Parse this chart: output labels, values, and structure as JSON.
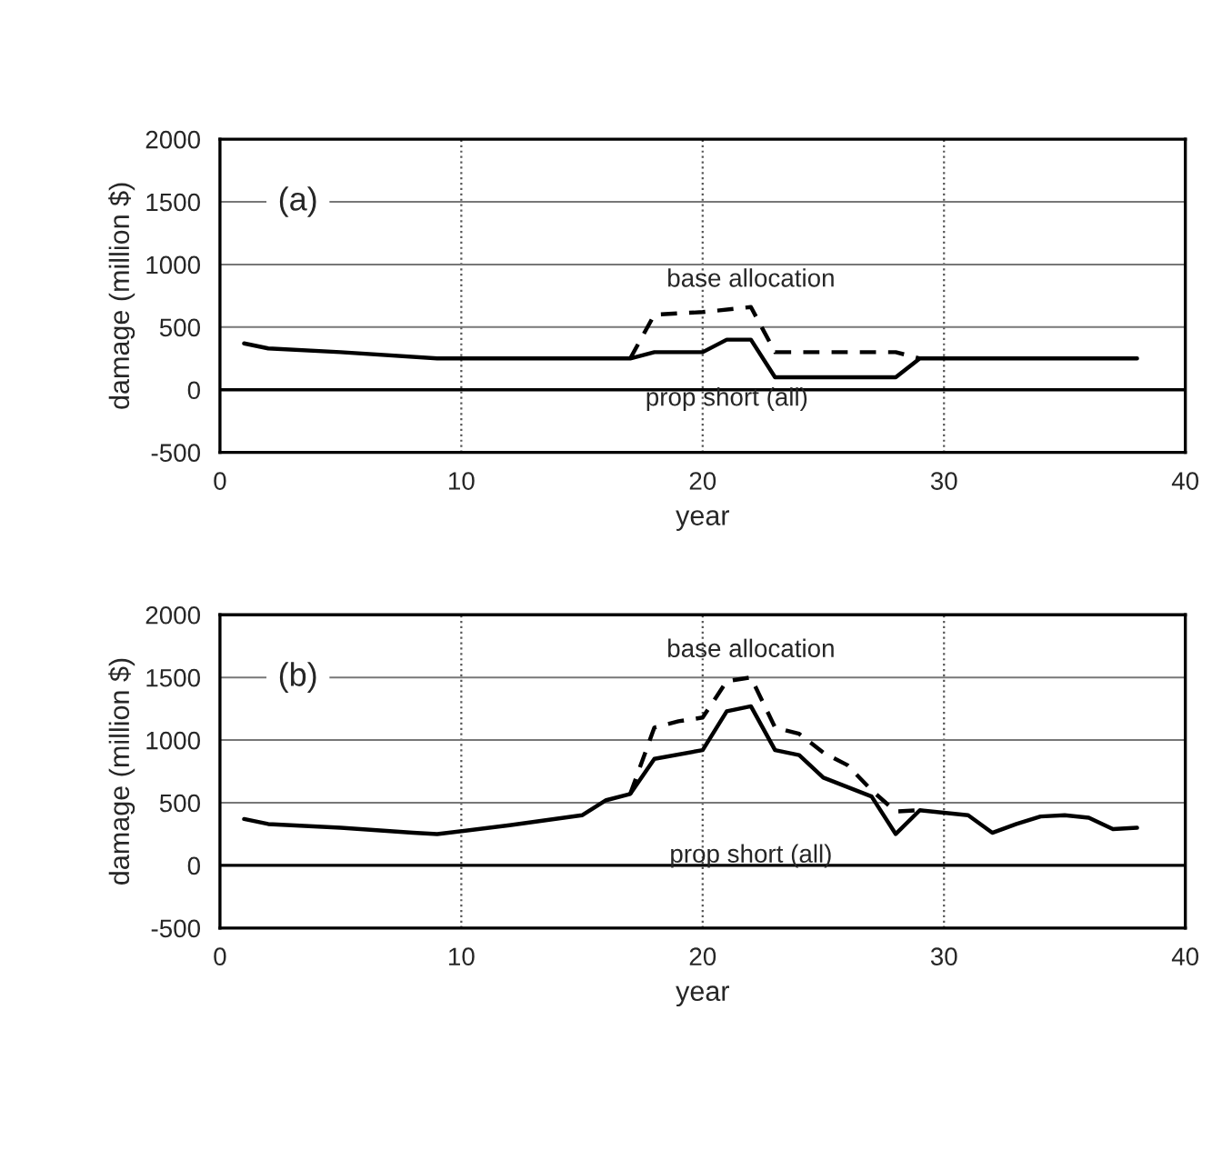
{
  "chart_data": [
    {
      "type": "line",
      "xlabel": "year",
      "ylabel": "damage (million $)",
      "annotations": [
        "(a)"
      ],
      "xlim": [
        0,
        40
      ],
      "xticks": [
        0,
        10,
        20,
        30,
        40
      ],
      "ylim": [
        -500,
        2000
      ],
      "yticks": [
        -500,
        0,
        500,
        1000,
        1500,
        2000
      ],
      "grid": true,
      "legend": false,
      "series": [
        {
          "name": "prop short (all)",
          "color": "#000000",
          "line_style": "solid",
          "x": [
            1,
            2,
            5,
            9,
            17,
            18,
            20,
            21,
            22,
            23,
            28,
            29,
            38
          ],
          "values": [
            370,
            330,
            300,
            250,
            250,
            300,
            300,
            400,
            400,
            100,
            100,
            250,
            250
          ]
        },
        {
          "name": "base allocation",
          "color": "#000000",
          "line_style": "dashed",
          "x": [
            17,
            18,
            20,
            22,
            23,
            28,
            29
          ],
          "values": [
            250,
            600,
            620,
            660,
            300,
            300,
            250
          ]
        }
      ]
    },
    {
      "type": "line",
      "xlabel": "year",
      "ylabel": "damage (million $)",
      "annotations": [
        "(b)"
      ],
      "xlim": [
        0,
        40
      ],
      "xticks": [
        0,
        10,
        20,
        30,
        40
      ],
      "ylim": [
        -500,
        2000
      ],
      "yticks": [
        -500,
        0,
        500,
        1000,
        1500,
        2000
      ],
      "grid": true,
      "legend": false,
      "series": [
        {
          "name": "prop short (all)",
          "color": "#000000",
          "line_style": "solid",
          "x": [
            1,
            2,
            5,
            8,
            9,
            12,
            15,
            16,
            17,
            18,
            20,
            21,
            22,
            23,
            24,
            25,
            27,
            28,
            29,
            31,
            32,
            33,
            34,
            35,
            36,
            37,
            38
          ],
          "values": [
            370,
            330,
            300,
            260,
            250,
            320,
            400,
            520,
            570,
            850,
            920,
            1230,
            1270,
            920,
            880,
            700,
            550,
            250,
            440,
            400,
            260,
            330,
            390,
            400,
            380,
            290,
            300
          ]
        },
        {
          "name": "base allocation",
          "color": "#000000",
          "line_style": "dashed",
          "x": [
            17,
            18,
            19,
            20,
            21,
            22,
            23,
            24,
            25,
            26,
            27,
            28,
            29
          ],
          "values": [
            570,
            1100,
            1150,
            1180,
            1470,
            1500,
            1100,
            1050,
            900,
            800,
            600,
            430,
            440
          ]
        }
      ]
    }
  ]
}
